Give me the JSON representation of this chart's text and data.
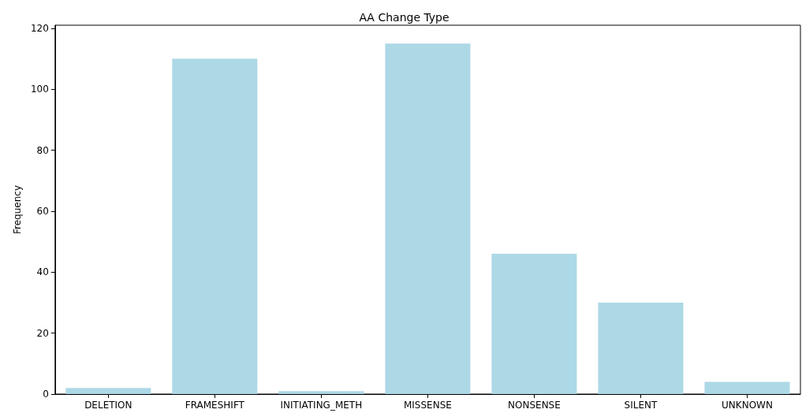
{
  "chart_data": {
    "type": "bar",
    "title": "AA Change Type",
    "ylabel": "Frequency",
    "categories": [
      "DELETION",
      "FRAMESHIFT",
      "INITIATING_METH",
      "MISSENSE",
      "NONSENSE",
      "SILENT",
      "UNKNOWN"
    ],
    "values": [
      2,
      110,
      1,
      115,
      46,
      30,
      4
    ],
    "color": "#add8e6",
    "ylim": [
      0,
      121
    ],
    "yticks": [
      0,
      20,
      40,
      60,
      80,
      100,
      120
    ],
    "grid": false
  }
}
